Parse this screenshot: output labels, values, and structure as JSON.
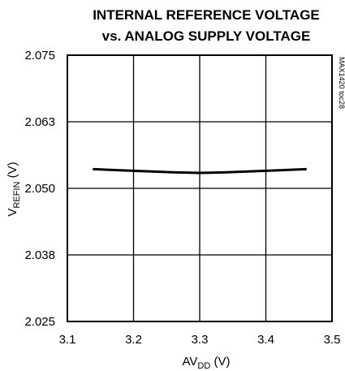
{
  "chart_data": {
    "type": "line",
    "title_lines": [
      "INTERNAL REFERENCE VOLTAGE",
      "vs. ANALOG SUPPLY VOLTAGE"
    ],
    "xlabel": {
      "main": "AV",
      "sub": "DD",
      "unit": " (V)"
    },
    "ylabel": {
      "main": "V",
      "sub": "REFIN",
      "unit": " (V)"
    },
    "xlim": [
      3.1,
      3.5
    ],
    "ylim": [
      2.025,
      2.075
    ],
    "x_ticks": [
      {
        "value": 3.1,
        "label": "3.1"
      },
      {
        "value": 3.2,
        "label": "3.2"
      },
      {
        "value": 3.3,
        "label": "3.3"
      },
      {
        "value": 3.4,
        "label": "3.4"
      },
      {
        "value": 3.5,
        "label": "3.5"
      }
    ],
    "y_ticks": [
      {
        "value": 2.025,
        "label": "2.025"
      },
      {
        "value": 2.0375,
        "label": "2.038"
      },
      {
        "value": 2.05,
        "label": "2.050"
      },
      {
        "value": 2.0625,
        "label": "2.063"
      },
      {
        "value": 2.075,
        "label": "2.075"
      }
    ],
    "grid": true,
    "series": [
      {
        "x": [
          3.14,
          3.18,
          3.22,
          3.26,
          3.3,
          3.34,
          3.38,
          3.42,
          3.46
        ],
        "y": [
          2.0536,
          2.0534,
          2.0532,
          2.053,
          2.0529,
          2.053,
          2.0532,
          2.0534,
          2.0536
        ]
      }
    ],
    "figure_code": "MAX1420 toc28"
  }
}
